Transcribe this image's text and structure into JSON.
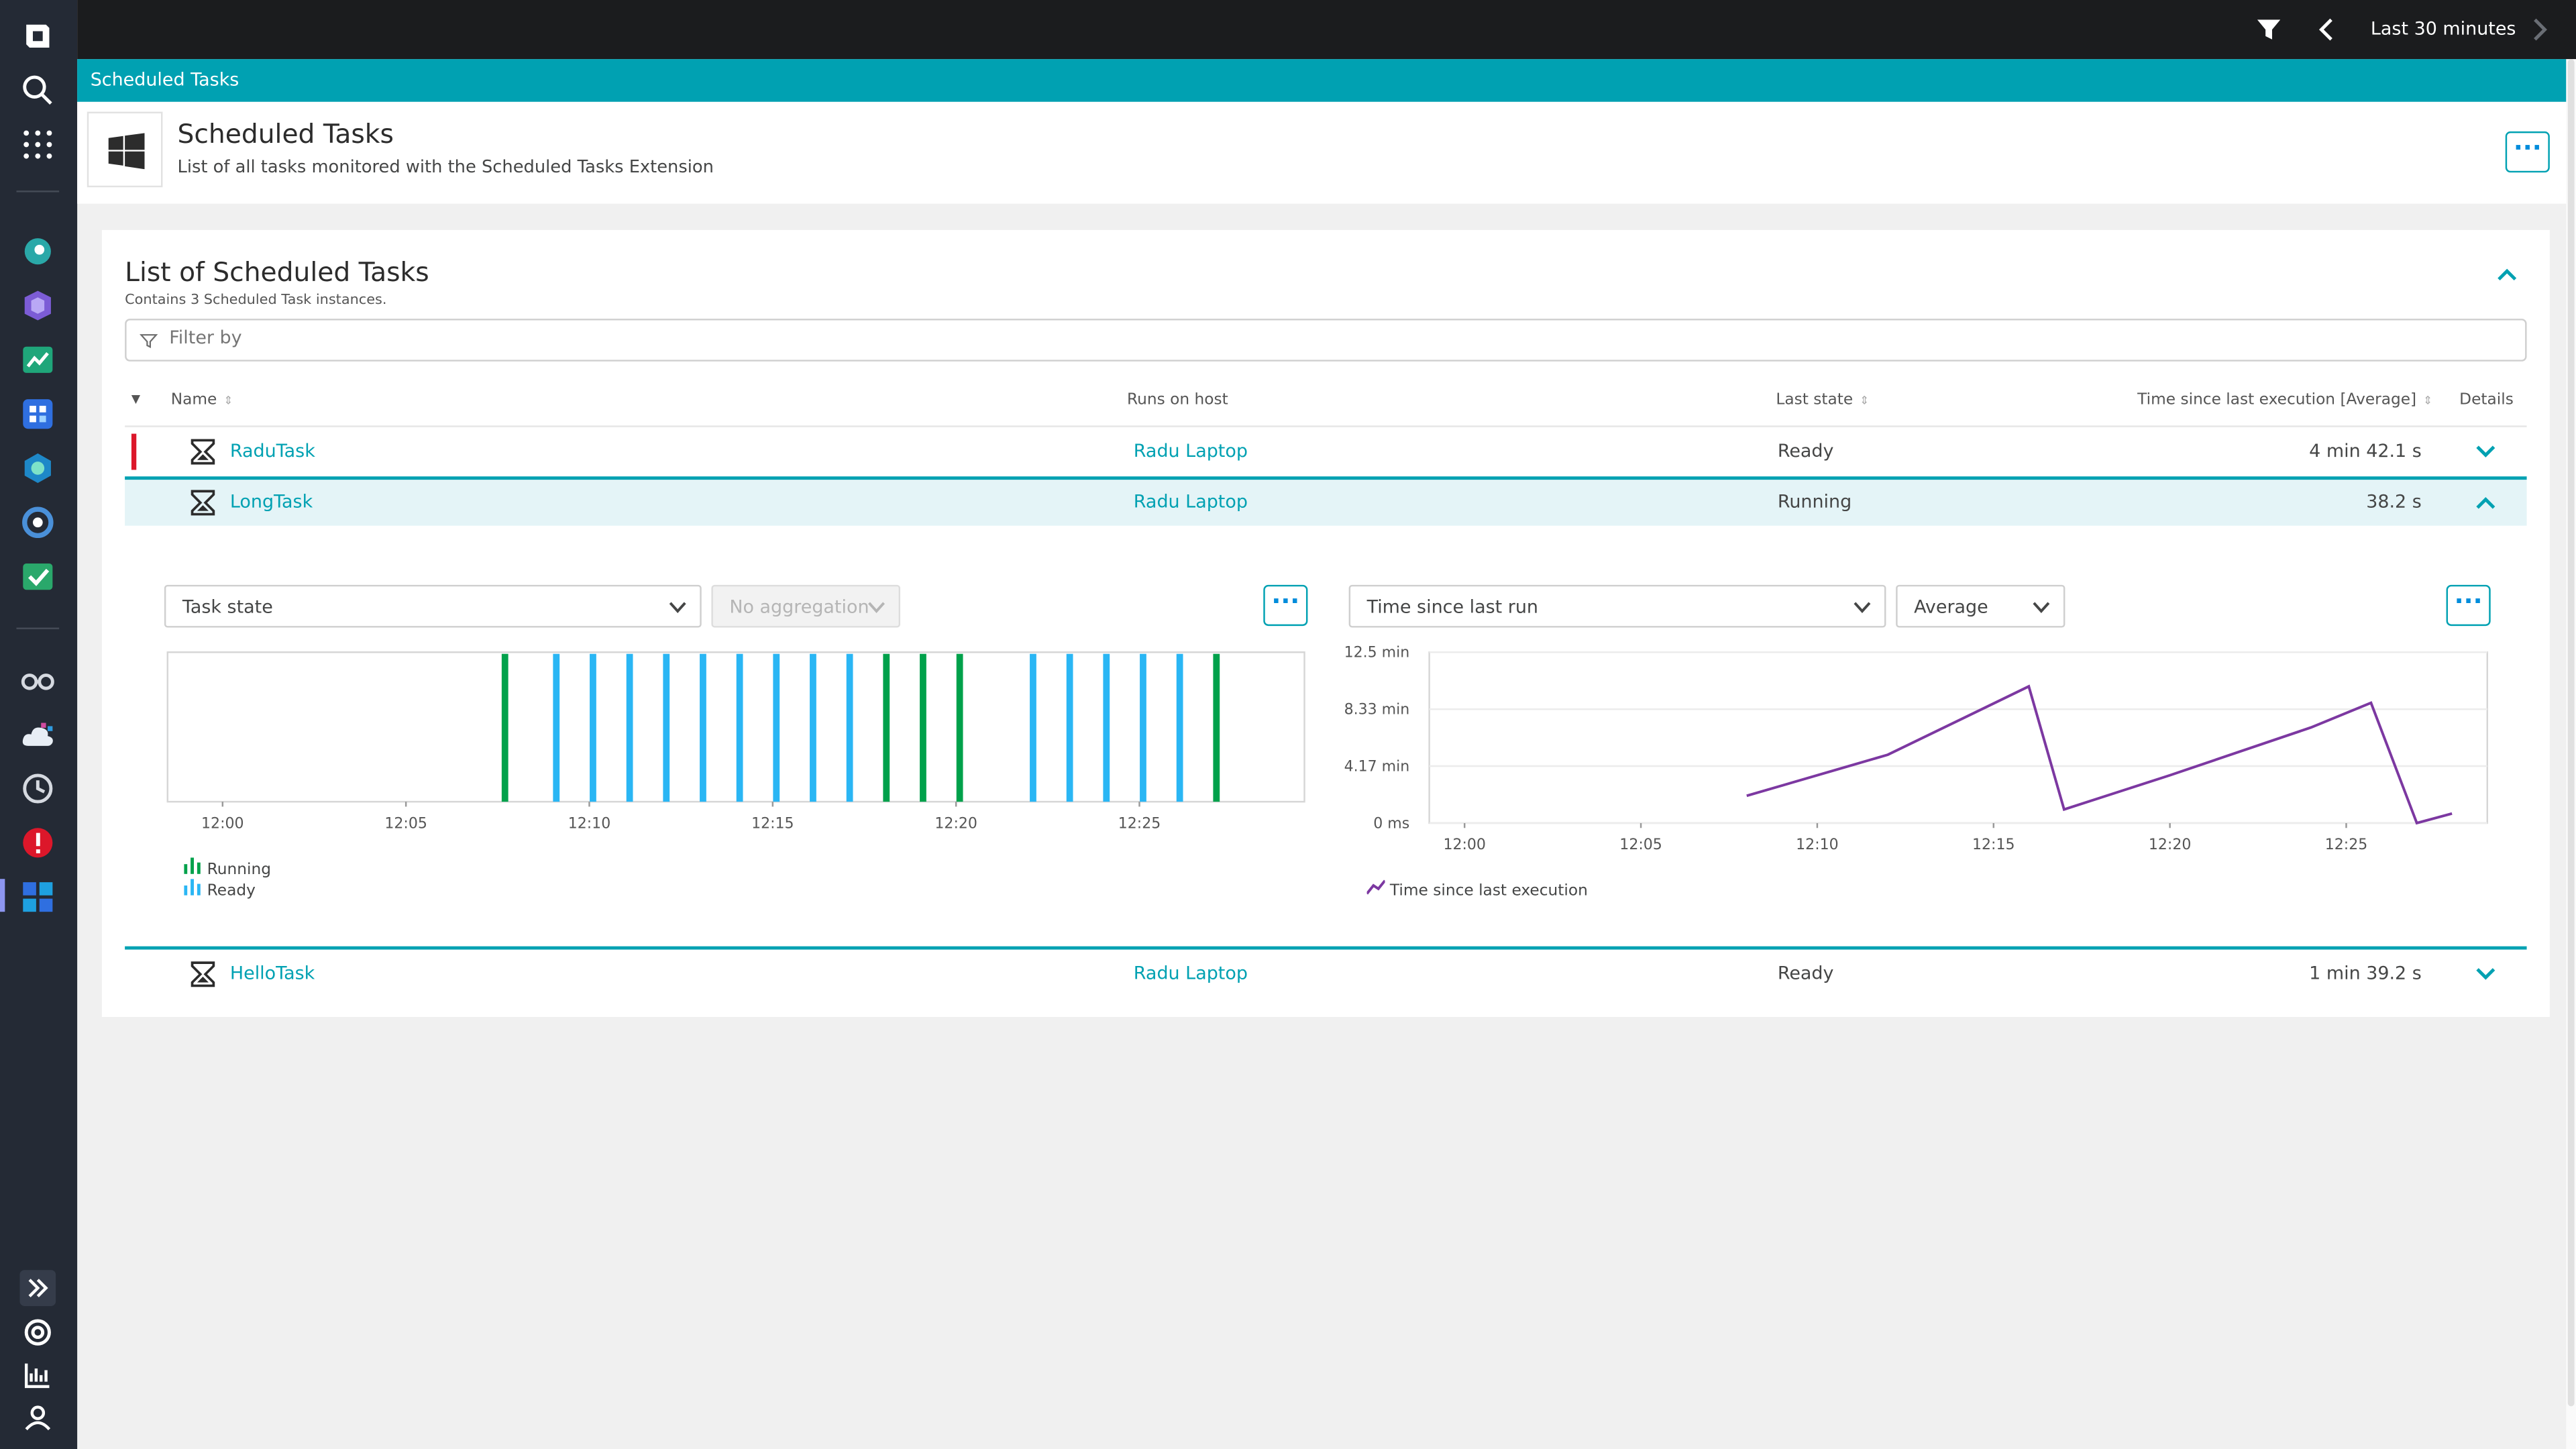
{
  "topbar": {
    "timeframe": "Last 30 minutes"
  },
  "breadcrumb": {
    "label": "Scheduled Tasks"
  },
  "header": {
    "title": "Scheduled Tasks",
    "subtitle": "List of all tasks monitored with the Scheduled Tasks Extension",
    "more_label": "···"
  },
  "card": {
    "title": "List of Scheduled Tasks",
    "subtitle": "Contains 3 Scheduled Task instances.",
    "filter_placeholder": "Filter by"
  },
  "table": {
    "columns": {
      "name": "Name",
      "host": "Runs on host",
      "state": "Last state",
      "time": "Time since last execution [Average]",
      "details": "Details"
    },
    "rows": [
      {
        "name": "RaduTask",
        "host": "Radu Laptop",
        "state": "Ready",
        "time": "4 min 42.1 s"
      },
      {
        "name": "LongTask",
        "host": "Radu Laptop",
        "state": "Running",
        "time": "38.2 s"
      },
      {
        "name": "HelloTask",
        "host": "Radu Laptop",
        "state": "Ready",
        "time": "1 min 39.2 s"
      }
    ]
  },
  "left_chart": {
    "metric_select": "Task state",
    "aggregation_select": "No aggregation",
    "more_label": "···"
  },
  "right_chart": {
    "metric_select": "Time since last run",
    "aggregation_select": "Average",
    "more_label": "···"
  },
  "colors": {
    "running": "#00a14b",
    "ready": "#2ab6f4",
    "line": "#7c38a1",
    "accent": "#00a1b2"
  },
  "chart_data": [
    {
      "type": "bar",
      "x_ticks": [
        "12:00",
        "12:05",
        "12:10",
        "12:15",
        "12:20",
        "12:25"
      ],
      "xlim_minutes": [
        -1.5,
        29.5
      ],
      "legend": [
        "Running",
        "Ready"
      ],
      "series": [
        {
          "name": "Running",
          "x_minutes": [
            7.7,
            18.1,
            19.1,
            20.1,
            27.1
          ]
        },
        {
          "name": "Ready",
          "x_minutes": [
            9.1,
            10.1,
            11.1,
            12.1,
            13.1,
            14.1,
            15.1,
            16.1,
            17.1,
            22.1,
            23.1,
            24.1,
            25.1,
            26.1
          ]
        }
      ]
    },
    {
      "type": "line",
      "x_ticks": [
        "12:00",
        "12:05",
        "12:10",
        "12:15",
        "12:20",
        "12:25"
      ],
      "y_ticks": [
        "12.5 min",
        "8.33 min",
        "4.17 min",
        "0 ms"
      ],
      "ylim": [
        0,
        12.5
      ],
      "xlim_minutes": [
        -1,
        29
      ],
      "legend": [
        "Time since last execution"
      ],
      "series": [
        {
          "name": "Time since last execution",
          "points": [
            [
              8,
              2
            ],
            [
              12,
              5
            ],
            [
              16,
              10
            ],
            [
              17,
              1
            ],
            [
              20,
              3.5
            ],
            [
              24,
              7
            ],
            [
              25.7,
              8.8
            ],
            [
              27,
              0
            ],
            [
              28,
              0.7
            ]
          ]
        }
      ]
    }
  ]
}
